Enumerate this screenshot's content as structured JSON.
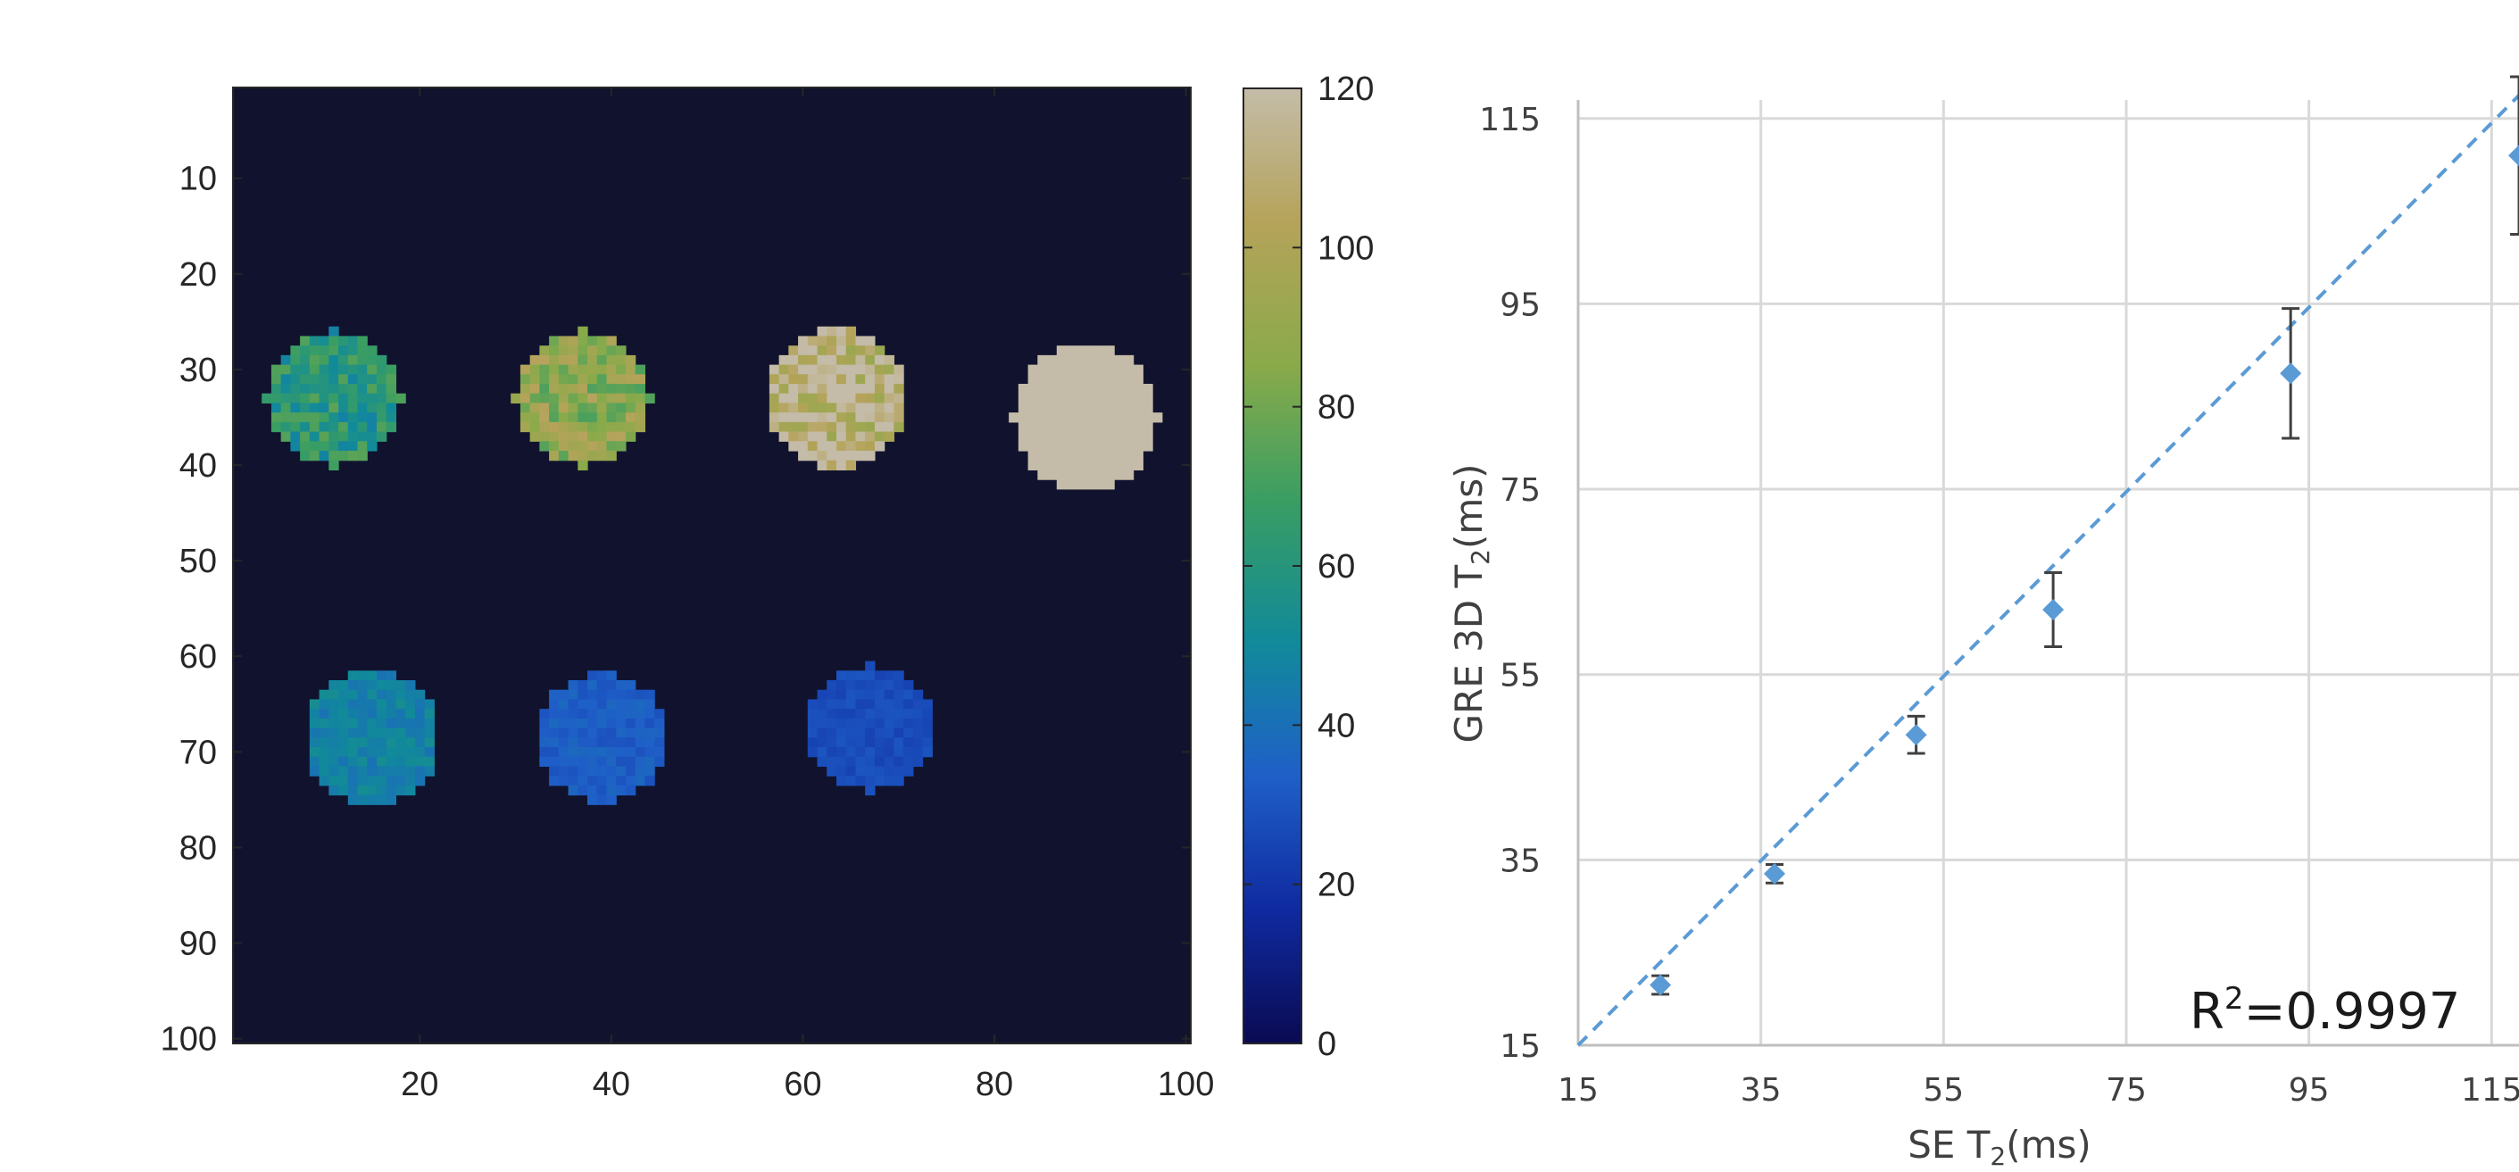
{
  "chart_data": [
    {
      "type": "heatmap",
      "x_ticks": [
        20,
        40,
        60,
        80,
        100
      ],
      "y_ticks": [
        10,
        20,
        30,
        40,
        50,
        60,
        70,
        80,
        90,
        100
      ],
      "xlim": [
        0.5,
        100.5
      ],
      "ylim": [
        0.5,
        100.5
      ],
      "background_value": 0,
      "colorbar": {
        "ticks": [
          0,
          20,
          40,
          60,
          80,
          100,
          120
        ],
        "range": [
          0,
          120
        ]
      },
      "colormap": [
        "#0a0a52",
        "#0f2aa0",
        "#1f5fc8",
        "#118a9a",
        "#3a9e62",
        "#8aaa4a",
        "#b5a35a",
        "#c4bca8"
      ],
      "background_color": "#11132e",
      "vials": [
        {
          "cx": 11,
          "cy": 33,
          "r": 7,
          "value": 62,
          "noise": 14
        },
        {
          "cx": 37,
          "cy": 33,
          "r": 7,
          "value": 88,
          "noise": 16
        },
        {
          "cx": 63.5,
          "cy": 33,
          "r": 7.2,
          "value": 112,
          "noise": 20
        },
        {
          "cx": 89.5,
          "cy": 35,
          "r": 7.5,
          "value": 120,
          "noise": 0
        },
        {
          "cx": 15,
          "cy": 68.5,
          "r": 7,
          "value": 48,
          "noise": 6
        },
        {
          "cx": 39,
          "cy": 68.5,
          "r": 6.8,
          "value": 34,
          "noise": 4
        },
        {
          "cx": 67,
          "cy": 67.5,
          "r": 6.5,
          "value": 28,
          "noise": 3
        }
      ]
    },
    {
      "type": "scatter",
      "xlabel": "SE T",
      "xlabel_sub": "2",
      "xlabel_unit": "(ms)",
      "ylabel": "GRE 3D T",
      "ylabel_sub": "2",
      "ylabel_unit": "(ms)",
      "xlim": [
        15,
        118
      ],
      "ylim": [
        15,
        117
      ],
      "x_ticks": [
        15,
        35,
        55,
        75,
        95,
        115
      ],
      "y_ticks": [
        15,
        35,
        55,
        75,
        95,
        115
      ],
      "grid": true,
      "points": [
        {
          "x": 24,
          "y": 21.5,
          "err": 1.0
        },
        {
          "x": 36.5,
          "y": 33.5,
          "err": 1.0
        },
        {
          "x": 52,
          "y": 48.5,
          "err": 2.0
        },
        {
          "x": 67,
          "y": 62,
          "err": 4.0
        },
        {
          "x": 93,
          "y": 87.5,
          "err": 7.0
        },
        {
          "x": 118,
          "y": 111,
          "err": 8.5
        }
      ],
      "trendline": {
        "x": [
          15,
          118
        ],
        "y": [
          15,
          117.5
        ]
      },
      "marker_color": "#5b9bd5",
      "annotation": {
        "base": "R",
        "sup": "2",
        "rest": "=0.9997"
      }
    }
  ]
}
